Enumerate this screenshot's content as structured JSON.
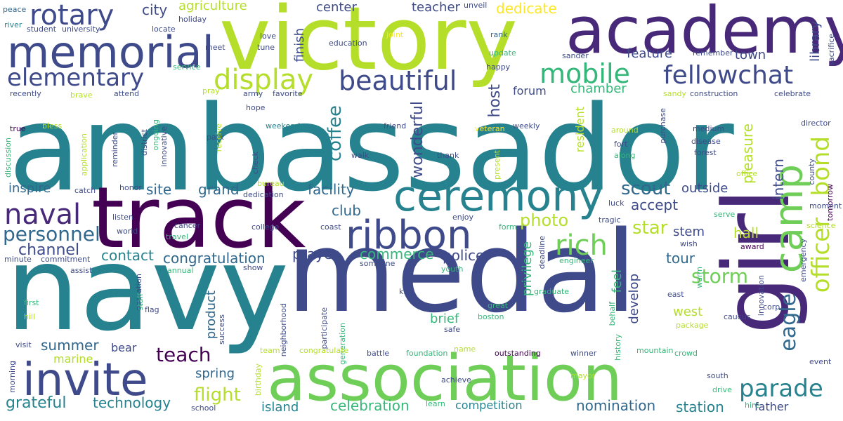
{
  "cloud": {
    "background": "#ffffff",
    "palette": [
      "#440154",
      "#482878",
      "#3e4a89",
      "#31688e",
      "#26828e",
      "#1f9e89",
      "#35b779",
      "#6ece58",
      "#b5de2b",
      "#fde725"
    ],
    "words": [
      {
        "text": "ambassador",
        "color": "#26828e"
      },
      {
        "text": "navy",
        "color": "#26828e"
      },
      {
        "text": "medal",
        "color": "#3e4a89"
      },
      {
        "text": "victory",
        "color": "#b5de2b"
      },
      {
        "text": "track",
        "color": "#440154"
      },
      {
        "text": "academy",
        "color": "#482878"
      },
      {
        "text": "association",
        "color": "#6ece58"
      },
      {
        "text": "girl",
        "color": "#482878"
      },
      {
        "text": "memorial",
        "color": "#3e4a89"
      },
      {
        "text": "ceremony",
        "color": "#26828e"
      },
      {
        "text": "invite",
        "color": "#3e4a89"
      },
      {
        "text": "ribbon",
        "color": "#3e4a89"
      },
      {
        "text": "camp",
        "color": "#6ece58"
      },
      {
        "text": "rotary",
        "color": "#3e4a89"
      },
      {
        "text": "elementary",
        "color": "#3e4a89"
      },
      {
        "text": "display",
        "color": "#b5de2b"
      },
      {
        "text": "fellowchat",
        "color": "#3e4a89"
      },
      {
        "text": "beautiful",
        "color": "#3e4a89"
      },
      {
        "text": "mobile",
        "color": "#35b779"
      },
      {
        "text": "naval",
        "color": "#482878"
      },
      {
        "text": "rich",
        "color": "#6ece58"
      },
      {
        "text": "officer",
        "color": "#b5de2b"
      },
      {
        "text": "bond",
        "color": "#b5de2b"
      },
      {
        "text": "eagle",
        "color": "#31688e"
      },
      {
        "text": "parade",
        "color": "#26828e"
      },
      {
        "text": "personnel",
        "color": "#31688e"
      },
      {
        "text": "teach",
        "color": "#440154"
      },
      {
        "text": "scout",
        "color": "#31688e"
      },
      {
        "text": "storm",
        "color": "#6ece58"
      },
      {
        "text": "flight",
        "color": "#b5de2b"
      },
      {
        "text": "star",
        "color": "#b5de2b"
      },
      {
        "text": "photo",
        "color": "#b5de2b"
      },
      {
        "text": "coffee",
        "color": "#26828e"
      },
      {
        "text": "summer",
        "color": "#31688e"
      },
      {
        "text": "grateful",
        "color": "#26828e"
      },
      {
        "text": "technology",
        "color": "#26828e"
      },
      {
        "text": "celebration",
        "color": "#35b779"
      },
      {
        "text": "nomination",
        "color": "#31688e"
      },
      {
        "text": "station",
        "color": "#26828e"
      },
      {
        "text": "channel",
        "color": "#3e4a89"
      },
      {
        "text": "inspire",
        "color": "#31688e"
      },
      {
        "text": "site",
        "color": "#31688e"
      },
      {
        "text": "grand",
        "color": "#31688e"
      },
      {
        "text": "facility",
        "color": "#31688e"
      },
      {
        "text": "club",
        "color": "#31688e"
      },
      {
        "text": "contact",
        "color": "#26828e"
      },
      {
        "text": "congratulation",
        "color": "#31688e"
      },
      {
        "text": "commerce",
        "color": "#35b779"
      },
      {
        "text": "police",
        "color": "#3e4a89"
      },
      {
        "text": "prayer",
        "color": "#3e4a89"
      },
      {
        "text": "accept",
        "color": "#3e4a89"
      },
      {
        "text": "tour",
        "color": "#31688e"
      },
      {
        "text": "hall",
        "color": "#b5de2b"
      },
      {
        "text": "stem",
        "color": "#3e4a89"
      },
      {
        "text": "outside",
        "color": "#3e4a89"
      },
      {
        "text": "intern",
        "color": "#3e4a89"
      },
      {
        "text": "pleasure",
        "color": "#b5de2b"
      },
      {
        "text": "wonderful",
        "color": "#3e4a89"
      },
      {
        "text": "host",
        "color": "#3e4a89"
      },
      {
        "text": "chamber",
        "color": "#35b779"
      },
      {
        "text": "forum",
        "color": "#3e4a89"
      },
      {
        "text": "feature",
        "color": "#3e4a89"
      },
      {
        "text": "town",
        "color": "#3e4a89"
      },
      {
        "text": "library",
        "color": "#3e4a89"
      },
      {
        "text": "center",
        "color": "#3e4a89"
      },
      {
        "text": "teacher",
        "color": "#3e4a89"
      },
      {
        "text": "dedicate",
        "color": "#fde725"
      },
      {
        "text": "city",
        "color": "#3e4a89"
      },
      {
        "text": "agriculture",
        "color": "#b5de2b"
      },
      {
        "text": "finish",
        "color": "#3e4a89"
      },
      {
        "text": "spring",
        "color": "#31688e"
      },
      {
        "text": "marine",
        "color": "#b5de2b"
      },
      {
        "text": "bear",
        "color": "#3e4a89"
      },
      {
        "text": "product",
        "color": "#31688e"
      },
      {
        "text": "brief",
        "color": "#35b779"
      },
      {
        "text": "west",
        "color": "#b5de2b"
      },
      {
        "text": "develop",
        "color": "#3e4a89"
      },
      {
        "text": "feel",
        "color": "#35b779"
      },
      {
        "text": "privilege",
        "color": "#35b779"
      },
      {
        "text": "island",
        "color": "#26828e"
      },
      {
        "text": "competition",
        "color": "#26828e"
      },
      {
        "text": "father",
        "color": "#3e4a89"
      },
      {
        "text": "resident",
        "color": "#b5de2b"
      },
      {
        "text": "peace",
        "color": "#31688e"
      },
      {
        "text": "river",
        "color": "#26828e"
      },
      {
        "text": "student",
        "color": "#3e4a89"
      },
      {
        "text": "university",
        "color": "#3e4a89"
      },
      {
        "text": "holiday",
        "color": "#3e4a89"
      },
      {
        "text": "locate",
        "color": "#3e4a89"
      },
      {
        "text": "joint",
        "color": "#fde725"
      },
      {
        "text": "education",
        "color": "#3e4a89"
      },
      {
        "text": "unveil",
        "color": "#3e4a89"
      },
      {
        "text": "rank",
        "color": "#31688e"
      },
      {
        "text": "update",
        "color": "#35b779"
      },
      {
        "text": "sander",
        "color": "#3e4a89"
      },
      {
        "text": "remember",
        "color": "#3e4a89"
      },
      {
        "text": "sacrifice",
        "color": "#3e4a89"
      },
      {
        "text": "love",
        "color": "#3e4a89"
      },
      {
        "text": "meet",
        "color": "#3e4a89"
      },
      {
        "text": "tune",
        "color": "#3e4a89"
      },
      {
        "text": "service",
        "color": "#35b779"
      },
      {
        "text": "happy",
        "color": "#3e4a89"
      },
      {
        "text": "recently",
        "color": "#3e4a89"
      },
      {
        "text": "brave",
        "color": "#b5de2b"
      },
      {
        "text": "attend",
        "color": "#3e4a89"
      },
      {
        "text": "pray",
        "color": "#b5de2b"
      },
      {
        "text": "army",
        "color": "#3e4a89"
      },
      {
        "text": "favorite",
        "color": "#3e4a89"
      },
      {
        "text": "sandy",
        "color": "#b5de2b"
      },
      {
        "text": "construction",
        "color": "#3e4a89"
      },
      {
        "text": "celebrate",
        "color": "#3e4a89"
      },
      {
        "text": "hope",
        "color": "#3e4a89"
      },
      {
        "text": "bless",
        "color": "#b5de2b"
      },
      {
        "text": "true",
        "color": "#440154"
      },
      {
        "text": "weekend",
        "color": "#26828e"
      },
      {
        "text": "friend",
        "color": "#3e4a89"
      },
      {
        "text": "veteran",
        "color": "#fde725"
      },
      {
        "text": "weekly",
        "color": "#3e4a89"
      },
      {
        "text": "around",
        "color": "#b5de2b"
      },
      {
        "text": "purchase",
        "color": "#3e4a89"
      },
      {
        "text": "medium",
        "color": "#3e4a89"
      },
      {
        "text": "director",
        "color": "#3e4a89"
      },
      {
        "text": "disease",
        "color": "#3e4a89"
      },
      {
        "text": "forest",
        "color": "#3e4a89"
      },
      {
        "text": "fort",
        "color": "#3e4a89"
      },
      {
        "text": "along",
        "color": "#35b779"
      },
      {
        "text": "county",
        "color": "#3e4a89"
      },
      {
        "text": "office",
        "color": "#b5de2b"
      },
      {
        "text": "tomorrow",
        "color": "#440154"
      },
      {
        "text": "moment",
        "color": "#3e4a89"
      },
      {
        "text": "science",
        "color": "#b5de2b"
      },
      {
        "text": "discussion",
        "color": "#35b779"
      },
      {
        "text": "application",
        "color": "#b5de2b"
      },
      {
        "text": "reminder",
        "color": "#3e4a89"
      },
      {
        "text": "district",
        "color": "#3e4a89"
      },
      {
        "text": "ongoing",
        "color": "#35b779"
      },
      {
        "text": "innovative",
        "color": "#3e4a89"
      },
      {
        "text": "park",
        "color": "#3e4a89"
      },
      {
        "text": "receive",
        "color": "#b5de2b"
      },
      {
        "text": "walk",
        "color": "#3e4a89"
      },
      {
        "text": "check",
        "color": "#3e4a89"
      },
      {
        "text": "thank",
        "color": "#3e4a89"
      },
      {
        "text": "present",
        "color": "#b5de2b"
      },
      {
        "text": "catch",
        "color": "#3e4a89"
      },
      {
        "text": "honor",
        "color": "#3e4a89"
      },
      {
        "text": "bureau",
        "color": "#b5de2b"
      },
      {
        "text": "dedication",
        "color": "#3e4a89"
      },
      {
        "text": "luck",
        "color": "#3e4a89"
      },
      {
        "text": "serve",
        "color": "#35b779"
      },
      {
        "text": "listen",
        "color": "#3e4a89"
      },
      {
        "text": "world",
        "color": "#3e4a89"
      },
      {
        "text": "cancer",
        "color": "#3e4a89"
      },
      {
        "text": "travel",
        "color": "#35b779"
      },
      {
        "text": "college",
        "color": "#3e4a89"
      },
      {
        "text": "coast",
        "color": "#3e4a89"
      },
      {
        "text": "enjoy",
        "color": "#3e4a89"
      },
      {
        "text": "form",
        "color": "#35b779"
      },
      {
        "text": "tragic",
        "color": "#3e4a89"
      },
      {
        "text": "wish",
        "color": "#3e4a89"
      },
      {
        "text": "award",
        "color": "#440154"
      },
      {
        "text": "emergency",
        "color": "#3e4a89"
      },
      {
        "text": "minute",
        "color": "#3e4a89"
      },
      {
        "text": "commitment",
        "color": "#3e4a89"
      },
      {
        "text": "annual",
        "color": "#35b779"
      },
      {
        "text": "show",
        "color": "#3e4a89"
      },
      {
        "text": "someone",
        "color": "#3e4a89"
      },
      {
        "text": "youth",
        "color": "#35b779"
      },
      {
        "text": "deadline",
        "color": "#3e4a89"
      },
      {
        "text": "engineer",
        "color": "#35b779"
      },
      {
        "text": "warm",
        "color": "#35b779"
      },
      {
        "text": "east",
        "color": "#3e4a89"
      },
      {
        "text": "innovation",
        "color": "#3e4a89"
      },
      {
        "text": "assist",
        "color": "#3e4a89"
      },
      {
        "text": "operation",
        "color": "#3e4a89"
      },
      {
        "text": "staff",
        "color": "#35b779"
      },
      {
        "text": "kick",
        "color": "#3e4a89"
      },
      {
        "text": "graduate",
        "color": "#35b779"
      },
      {
        "text": "first",
        "color": "#35b779"
      },
      {
        "text": "hill",
        "color": "#b5de2b"
      },
      {
        "text": "great",
        "color": "#35b779"
      },
      {
        "text": "boston",
        "color": "#35b779"
      },
      {
        "text": "behalf",
        "color": "#35b779"
      },
      {
        "text": "corp",
        "color": "#3e4a89"
      },
      {
        "text": "caucus",
        "color": "#3e4a89"
      },
      {
        "text": "flag",
        "color": "#3e4a89"
      },
      {
        "text": "neighborhood",
        "color": "#3e4a89"
      },
      {
        "text": "participate",
        "color": "#3e4a89"
      },
      {
        "text": "generation",
        "color": "#35b779"
      },
      {
        "text": "safe",
        "color": "#3e4a89"
      },
      {
        "text": "package",
        "color": "#b5de2b"
      },
      {
        "text": "success",
        "color": "#3e4a89"
      },
      {
        "text": "visit",
        "color": "#3e4a89"
      },
      {
        "text": "history",
        "color": "#35b779"
      },
      {
        "text": "team",
        "color": "#b5de2b"
      },
      {
        "text": "congratulate",
        "color": "#b5de2b"
      },
      {
        "text": "battle",
        "color": "#3e4a89"
      },
      {
        "text": "foundation",
        "color": "#35b779"
      },
      {
        "text": "name",
        "color": "#b5de2b"
      },
      {
        "text": "outstanding",
        "color": "#440154"
      },
      {
        "text": "winner",
        "color": "#3e4a89"
      },
      {
        "text": "mountain",
        "color": "#35b779"
      },
      {
        "text": "crowd",
        "color": "#35b779"
      },
      {
        "text": "event",
        "color": "#3e4a89"
      },
      {
        "text": "morning",
        "color": "#3e4a89"
      },
      {
        "text": "birthday",
        "color": "#b5de2b"
      },
      {
        "text": "achieve",
        "color": "#3e4a89"
      },
      {
        "text": "mayor",
        "color": "#b5de2b"
      },
      {
        "text": "south",
        "color": "#3e4a89"
      },
      {
        "text": "drive",
        "color": "#35b779"
      },
      {
        "text": "school",
        "color": "#3e4a89"
      },
      {
        "text": "learn",
        "color": "#35b779"
      },
      {
        "text": "hire",
        "color": "#35b779"
      }
    ]
  }
}
